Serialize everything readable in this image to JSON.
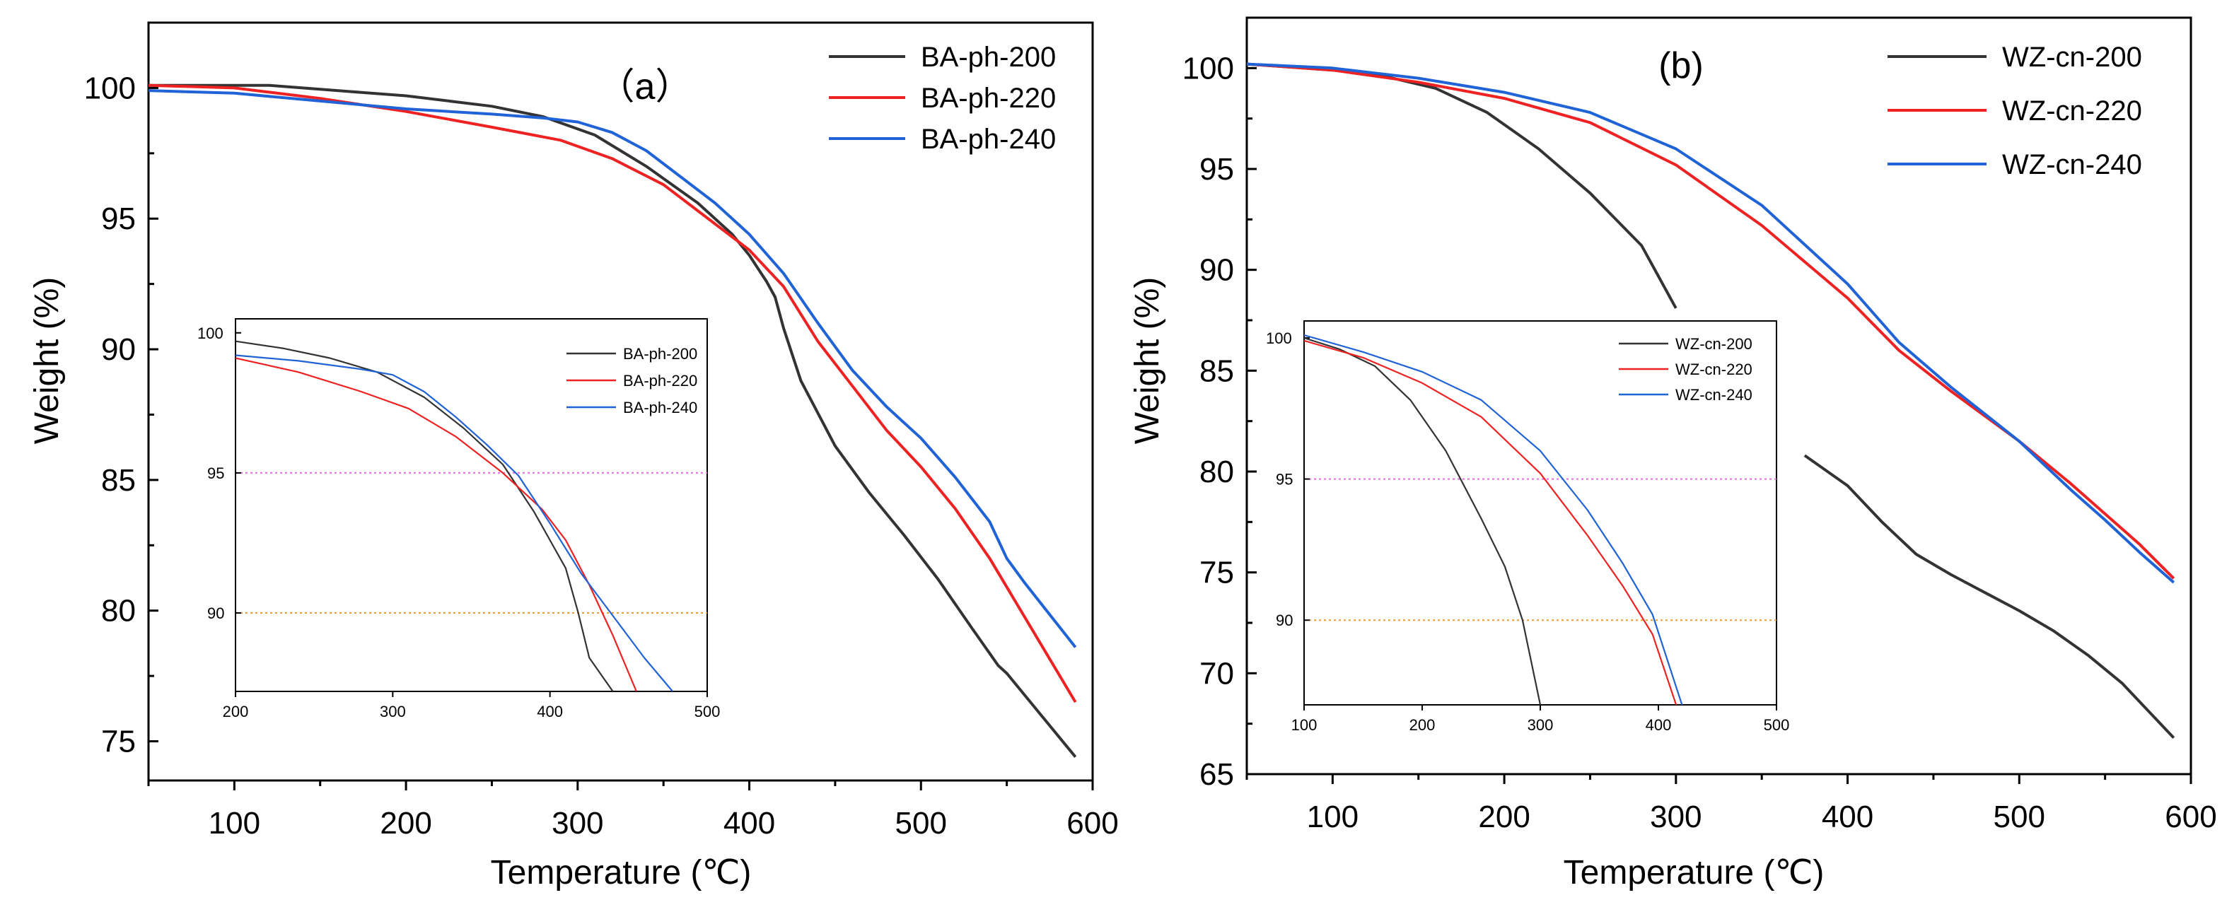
{
  "chart_data": [
    {
      "type": "line",
      "panel_label": "（a）",
      "xlabel": "Temperature (℃)",
      "ylabel": "Weight (%)",
      "xlim": [
        50,
        600
      ],
      "ylim": [
        73.5,
        102.5
      ],
      "x_ticks": [
        100,
        200,
        300,
        400,
        500,
        600
      ],
      "x_tick_labels": [
        "100",
        "200",
        "300",
        "400",
        "500",
        "600"
      ],
      "y_ticks": [
        75,
        80,
        85,
        90,
        95,
        100
      ],
      "y_tick_labels": [
        "75",
        "80",
        "85",
        "90",
        "95",
        "100"
      ],
      "legend_position": "top-right",
      "series": [
        {
          "name": "BA-ph-200",
          "color": "#333333",
          "points": [
            [
              50,
              100.1
            ],
            [
              120,
              100.1
            ],
            [
              150,
              99.95
            ],
            [
              200,
              99.7
            ],
            [
              250,
              99.3
            ],
            [
              280,
              98.9
            ],
            [
              310,
              98.2
            ],
            [
              340,
              97.0
            ],
            [
              370,
              95.6
            ],
            [
              390,
              94.4
            ],
            [
              400,
              93.6
            ],
            [
              410,
              92.6
            ],
            [
              415,
              92.0
            ],
            [
              420,
              90.8
            ],
            [
              430,
              88.8
            ],
            [
              450,
              86.3
            ],
            [
              470,
              84.5
            ],
            [
              490,
              82.9
            ],
            [
              510,
              81.2
            ],
            [
              530,
              79.3
            ],
            [
              545,
              77.9
            ],
            [
              550,
              77.6
            ],
            [
              570,
              76.0
            ],
            [
              590,
              74.4
            ]
          ]
        },
        {
          "name": "BA-ph-220",
          "color": "#ee2222",
          "points": [
            [
              50,
              100.1
            ],
            [
              100,
              100.0
            ],
            [
              150,
              99.6
            ],
            [
              200,
              99.1
            ],
            [
              250,
              98.5
            ],
            [
              290,
              98.0
            ],
            [
              320,
              97.3
            ],
            [
              350,
              96.3
            ],
            [
              380,
              94.8
            ],
            [
              400,
              93.8
            ],
            [
              420,
              92.4
            ],
            [
              440,
              90.3
            ],
            [
              460,
              88.6
            ],
            [
              480,
              86.9
            ],
            [
              500,
              85.5
            ],
            [
              520,
              83.9
            ],
            [
              540,
              82.0
            ],
            [
              560,
              79.8
            ],
            [
              590,
              76.5
            ]
          ]
        },
        {
          "name": "BA-ph-240",
          "color": "#1f63d6",
          "points": [
            [
              50,
              99.9
            ],
            [
              100,
              99.8
            ],
            [
              150,
              99.5
            ],
            [
              200,
              99.2
            ],
            [
              250,
              99.0
            ],
            [
              280,
              98.85
            ],
            [
              300,
              98.7
            ],
            [
              320,
              98.3
            ],
            [
              340,
              97.6
            ],
            [
              360,
              96.6
            ],
            [
              380,
              95.6
            ],
            [
              400,
              94.4
            ],
            [
              420,
              92.9
            ],
            [
              440,
              91.0
            ],
            [
              460,
              89.2
            ],
            [
              480,
              87.8
            ],
            [
              500,
              86.6
            ],
            [
              520,
              85.1
            ],
            [
              540,
              83.4
            ],
            [
              550,
              82.0
            ],
            [
              560,
              81.1
            ],
            [
              590,
              78.6
            ]
          ]
        }
      ],
      "inset": {
        "xlim": [
          200,
          500
        ],
        "ylim": [
          87.2,
          100.5
        ],
        "x_ticks": [
          200,
          300,
          400,
          500
        ],
        "x_tick_labels": [
          "200",
          "300",
          "400",
          "500"
        ],
        "y_ticks": [
          90,
          95,
          100
        ],
        "y_tick_labels": [
          "90",
          "95",
          "100"
        ],
        "ref_lines": [
          {
            "y": 95,
            "color": "#ee66ee"
          },
          {
            "y": 90,
            "color": "#ee9a33"
          }
        ],
        "legend_position": "top-right",
        "series": [
          {
            "name": "BA-ph-200",
            "color": "#333333",
            "points": [
              [
                200,
                99.7
              ],
              [
                230,
                99.45
              ],
              [
                260,
                99.1
              ],
              [
                290,
                98.6
              ],
              [
                320,
                97.7
              ],
              [
                345,
                96.6
              ],
              [
                370,
                95.3
              ],
              [
                390,
                93.6
              ],
              [
                410,
                91.6
              ],
              [
                418,
                90.0
              ],
              [
                425,
                88.4
              ],
              [
                440,
                87.2
              ]
            ]
          },
          {
            "name": "BA-ph-220",
            "color": "#ee2222",
            "points": [
              [
                200,
                99.1
              ],
              [
                240,
                98.6
              ],
              [
                280,
                97.9
              ],
              [
                310,
                97.3
              ],
              [
                340,
                96.3
              ],
              [
                370,
                95.0
              ],
              [
                395,
                93.7
              ],
              [
                410,
                92.6
              ],
              [
                425,
                91.0
              ],
              [
                440,
                89.2
              ],
              [
                455,
                87.2
              ]
            ]
          },
          {
            "name": "BA-ph-240",
            "color": "#1f63d6",
            "points": [
              [
                200,
                99.2
              ],
              [
                240,
                99.0
              ],
              [
                280,
                98.7
              ],
              [
                300,
                98.5
              ],
              [
                320,
                97.9
              ],
              [
                340,
                97.0
              ],
              [
                360,
                96.0
              ],
              [
                380,
                94.9
              ],
              [
                400,
                93.2
              ],
              [
                420,
                91.4
              ],
              [
                440,
                89.9
              ],
              [
                460,
                88.4
              ],
              [
                478,
                87.2
              ]
            ]
          }
        ]
      }
    },
    {
      "type": "line",
      "panel_label": "(b)",
      "xlabel": "Temperature (℃)",
      "ylabel": "Weight (%)",
      "xlim": [
        50,
        600
      ],
      "ylim": [
        65,
        102.5
      ],
      "x_ticks": [
        100,
        200,
        300,
        400,
        500,
        600
      ],
      "x_tick_labels": [
        "100",
        "200",
        "300",
        "400",
        "500",
        "600"
      ],
      "y_ticks": [
        65,
        70,
        75,
        80,
        85,
        90,
        95,
        100
      ],
      "y_tick_labels": [
        "65",
        "70",
        "75",
        "80",
        "85",
        "90",
        "95",
        "100"
      ],
      "legend_position": "top-right",
      "series": [
        {
          "name": "WZ-cn-200",
          "color": "#333333",
          "segments": [
            [
              [
                50,
                100.2
              ],
              [
                100,
                99.9
              ],
              [
                130,
                99.6
              ],
              [
                160,
                99.0
              ],
              [
                190,
                97.8
              ],
              [
                220,
                96.0
              ],
              [
                250,
                93.8
              ],
              [
                280,
                91.2
              ],
              [
                300,
                88.1
              ]
            ],
            [
              [
                375,
                80.8
              ],
              [
                400,
                79.3
              ],
              [
                420,
                77.5
              ],
              [
                440,
                75.9
              ],
              [
                460,
                74.9
              ],
              [
                480,
                74.0
              ],
              [
                500,
                73.1
              ],
              [
                520,
                72.1
              ],
              [
                540,
                70.9
              ],
              [
                560,
                69.5
              ],
              [
                590,
                66.8
              ]
            ]
          ]
        },
        {
          "name": "WZ-cn-220",
          "color": "#ee2222",
          "points": [
            [
              50,
              100.2
            ],
            [
              100,
              99.9
            ],
            [
              150,
              99.3
            ],
            [
              200,
              98.5
            ],
            [
              250,
              97.3
            ],
            [
              300,
              95.2
            ],
            [
              350,
              92.2
            ],
            [
              400,
              88.6
            ],
            [
              430,
              86.0
            ],
            [
              460,
              84.0
            ],
            [
              500,
              81.5
            ],
            [
              530,
              79.4
            ],
            [
              550,
              77.9
            ],
            [
              570,
              76.4
            ],
            [
              590,
              74.7
            ]
          ]
        },
        {
          "name": "WZ-cn-240",
          "color": "#1f63d6",
          "points": [
            [
              50,
              100.2
            ],
            [
              100,
              100.0
            ],
            [
              150,
              99.5
            ],
            [
              200,
              98.8
            ],
            [
              250,
              97.8
            ],
            [
              300,
              96.0
            ],
            [
              350,
              93.2
            ],
            [
              400,
              89.3
            ],
            [
              430,
              86.4
            ],
            [
              460,
              84.2
            ],
            [
              500,
              81.5
            ],
            [
              530,
              79.1
            ],
            [
              550,
              77.6
            ],
            [
              570,
              76.0
            ],
            [
              590,
              74.5
            ]
          ]
        }
      ],
      "inset": {
        "xlim": [
          100,
          500
        ],
        "ylim": [
          87.0,
          100.6
        ],
        "x_ticks": [
          100,
          200,
          300,
          400,
          500
        ],
        "x_tick_labels": [
          "100",
          "200",
          "300",
          "400",
          "500"
        ],
        "y_ticks": [
          90,
          95,
          100
        ],
        "y_tick_labels": [
          "90",
          "95",
          "100"
        ],
        "ref_lines": [
          {
            "y": 95,
            "color": "#ee66ee"
          },
          {
            "y": 90,
            "color": "#ee9a33"
          }
        ],
        "legend_position": "top-right",
        "series": [
          {
            "name": "WZ-cn-200",
            "color": "#333333",
            "points": [
              [
                100,
                100.0
              ],
              [
                130,
                99.6
              ],
              [
                160,
                99.0
              ],
              [
                190,
                97.8
              ],
              [
                220,
                96.0
              ],
              [
                250,
                93.6
              ],
              [
                270,
                91.9
              ],
              [
                285,
                90.0
              ],
              [
                300,
                87.0
              ]
            ]
          },
          {
            "name": "WZ-cn-220",
            "color": "#ee2222",
            "points": [
              [
                100,
                99.9
              ],
              [
                150,
                99.3
              ],
              [
                200,
                98.4
              ],
              [
                250,
                97.2
              ],
              [
                300,
                95.2
              ],
              [
                340,
                93.0
              ],
              [
                370,
                91.2
              ],
              [
                395,
                89.5
              ],
              [
                415,
                87.0
              ]
            ]
          },
          {
            "name": "WZ-cn-240",
            "color": "#1f63d6",
            "points": [
              [
                100,
                100.1
              ],
              [
                150,
                99.5
              ],
              [
                200,
                98.8
              ],
              [
                250,
                97.8
              ],
              [
                300,
                96.0
              ],
              [
                340,
                93.9
              ],
              [
                370,
                92.0
              ],
              [
                395,
                90.2
              ],
              [
                420,
                87.0
              ]
            ]
          }
        ]
      }
    }
  ]
}
